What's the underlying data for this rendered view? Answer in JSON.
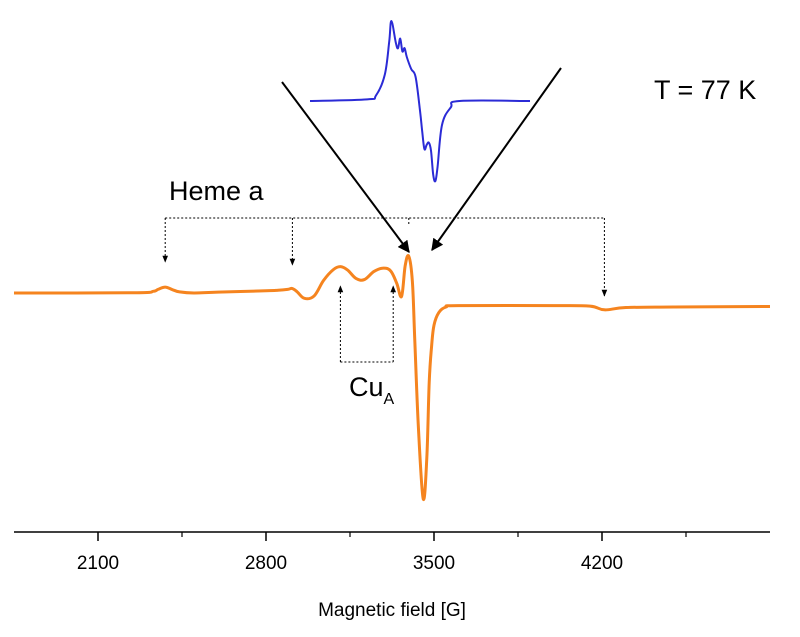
{
  "chart_data": {
    "type": "line",
    "title": "",
    "xlabel": "Magnetic field [G]",
    "ylabel": "",
    "xlim": [
      1750,
      4900
    ],
    "xticks": [
      2100,
      2800,
      3500,
      4200
    ],
    "minor_xticks": [
      2450,
      3150,
      3850,
      4550
    ],
    "grid": false,
    "temperature_label": "T = 77 K",
    "annotations": {
      "heme": {
        "text": "Heme a",
        "arrow_fields": [
          2380,
          2910,
          3395,
          4210
        ]
      },
      "cua": {
        "text": "Cu",
        "subscript": "A",
        "arrow_fields": [
          3110,
          3330
        ]
      }
    },
    "series": [
      {
        "color": "#f5841f",
        "x": [
          1750,
          2250,
          2330,
          2350,
          2380,
          2410,
          2440,
          2500,
          2600,
          2800,
          2850,
          2890,
          2910,
          2930,
          2960,
          3000,
          3040,
          3080,
          3110,
          3140,
          3175,
          3210,
          3250,
          3290,
          3320,
          3345,
          3365,
          3380,
          3395,
          3410,
          3420,
          3435,
          3455,
          3470,
          3480,
          3490,
          3500,
          3520,
          3550,
          3600,
          4000,
          4150,
          4210,
          4300,
          4500,
          4900
        ],
        "y": [
          0,
          0.001,
          0.006,
          0.013,
          0.021,
          0.012,
          0.004,
          0,
          0.003,
          0.008,
          0.01,
          0.013,
          0.016,
          0.004,
          -0.019,
          -0.011,
          0.045,
          0.083,
          0.094,
          0.082,
          0.052,
          0.048,
          0.077,
          0.089,
          0.078,
          0.034,
          -0.012,
          0.098,
          0.131,
          0.04,
          -0.17,
          -0.48,
          -0.735,
          -0.59,
          -0.32,
          -0.19,
          -0.115,
          -0.07,
          -0.05,
          -0.045,
          -0.045,
          -0.047,
          -0.06,
          -0.052,
          -0.05,
          -0.048
        ]
      }
    ],
    "inset": {
      "color": "#2b2bd6",
      "x": [
        0,
        0.26,
        0.3,
        0.34,
        0.36,
        0.37,
        0.39,
        0.4,
        0.41,
        0.42,
        0.43,
        0.44,
        0.46,
        0.48,
        0.5,
        0.51,
        0.52,
        0.53,
        0.54,
        0.55,
        0.56,
        0.57,
        0.58,
        0.6,
        0.64,
        0.68,
        1
      ],
      "y": [
        0,
        0.02,
        0.07,
        0.33,
        0.74,
        1.0,
        0.73,
        0.66,
        0.78,
        0.62,
        0.66,
        0.55,
        0.4,
        0.3,
        -0.12,
        -0.38,
        -0.6,
        -0.55,
        -0.52,
        -0.62,
        -0.92,
        -1.0,
        -0.82,
        -0.3,
        -0.08,
        0.0,
        0.0
      ]
    }
  }
}
